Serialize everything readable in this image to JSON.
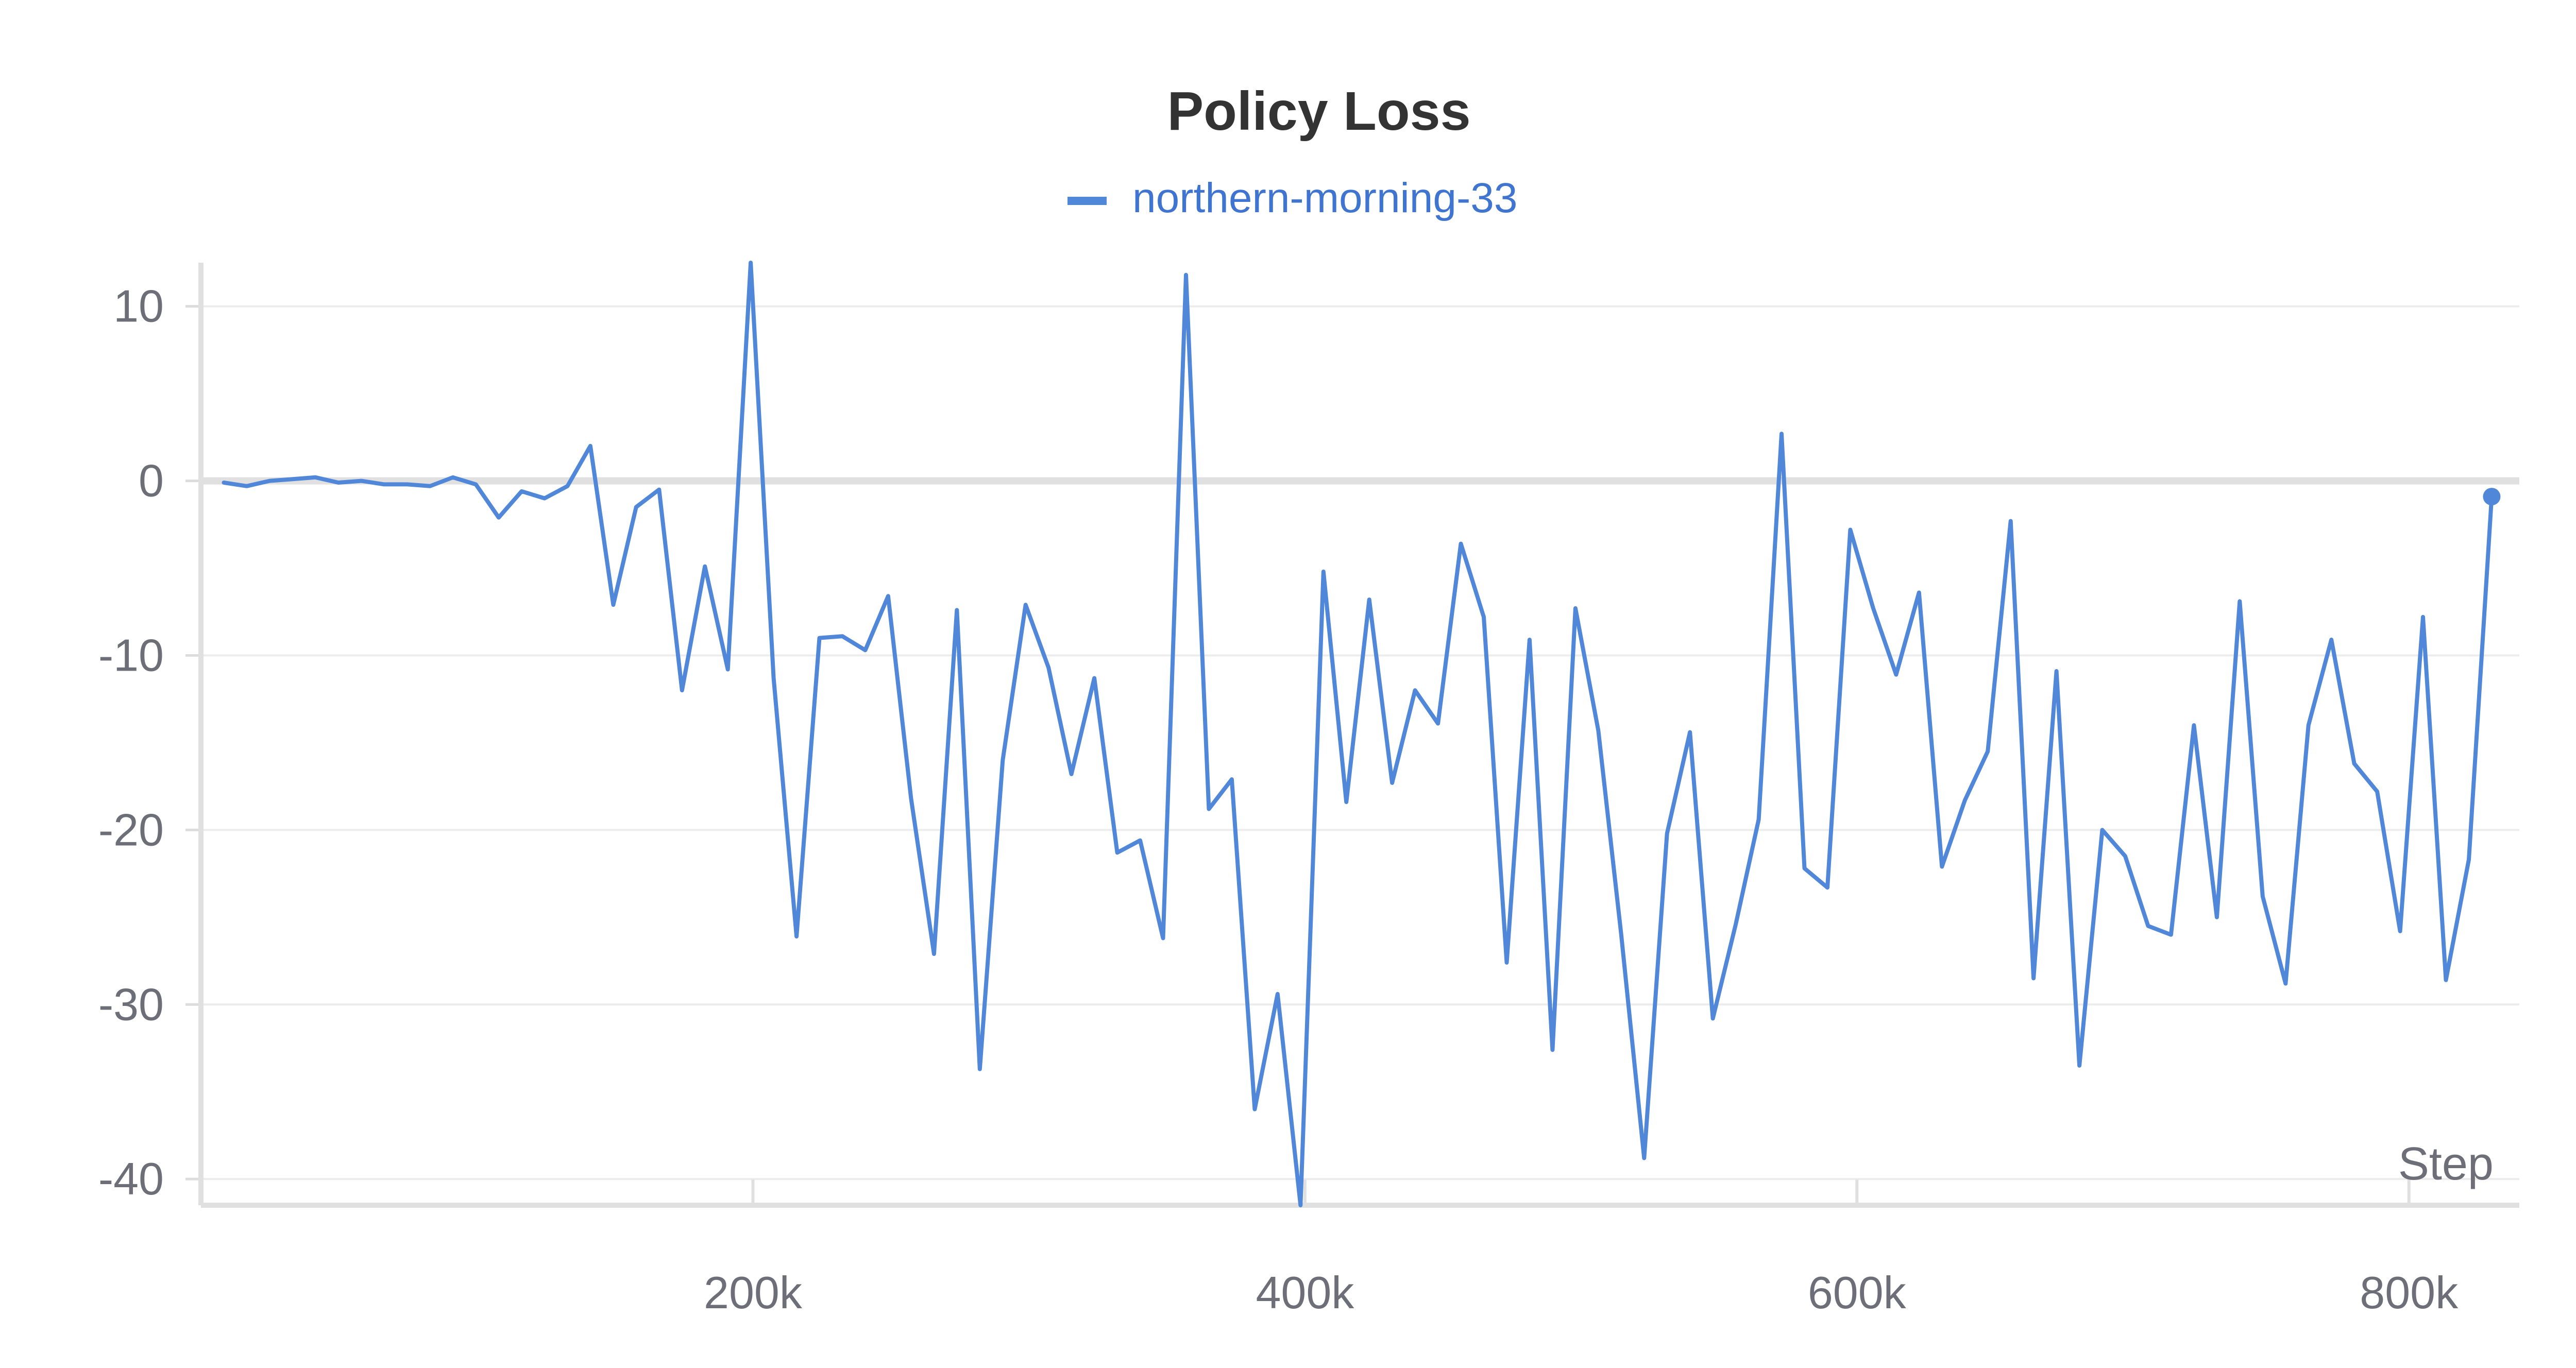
{
  "chart_data": {
    "type": "line",
    "title": "Policy Loss",
    "xlabel": "Step",
    "ylabel": "",
    "xlim": [
      0,
      840000
    ],
    "ylim": [
      -41.5,
      12.5
    ],
    "x_ticks": [
      {
        "value": 200000,
        "label": "200k"
      },
      {
        "value": 400000,
        "label": "400k"
      },
      {
        "value": 600000,
        "label": "600k"
      },
      {
        "value": 800000,
        "label": "800k"
      }
    ],
    "y_ticks": [
      {
        "value": 10,
        "label": "10"
      },
      {
        "value": 0,
        "label": "0"
      },
      {
        "value": -10,
        "label": "-10"
      },
      {
        "value": -20,
        "label": "-20"
      },
      {
        "value": -30,
        "label": "-30"
      },
      {
        "value": -40,
        "label": "-40"
      }
    ],
    "grid": true,
    "legend_position": "top-center",
    "series": [
      {
        "name": "northern-morning-33",
        "color": "#5087d8",
        "x": [
          8300,
          16600,
          24900,
          33200,
          41500,
          49800,
          58100,
          66400,
          74700,
          83000,
          91300,
          99600,
          107900,
          116200,
          124500,
          132800,
          141100,
          149400,
          157700,
          166000,
          174300,
          182600,
          190900,
          199200,
          207500,
          215800,
          224100,
          232400,
          240700,
          249000,
          257300,
          265600,
          273900,
          282200,
          290500,
          298800,
          307100,
          315400,
          323700,
          332000,
          340300,
          348600,
          356900,
          365200,
          373500,
          381800,
          390100,
          398400,
          406700,
          415000,
          423300,
          431600,
          439900,
          448200,
          456500,
          464800,
          473100,
          481400,
          489700,
          498000,
          506300,
          514600,
          522900,
          531200,
          539500,
          547800,
          556100,
          564400,
          572700,
          581000,
          589300,
          597600,
          605900,
          614200,
          622500,
          630800,
          639100,
          647400,
          655700,
          664000,
          672300,
          680600,
          688900,
          697200,
          705500,
          713800,
          722100,
          730400,
          738700,
          747000,
          755300,
          763600,
          771900,
          780200,
          788500,
          796800,
          805100,
          813400,
          821700,
          830000
        ],
        "y": [
          -0.1,
          -0.3,
          0.0,
          0.1,
          0.2,
          -0.1,
          0.0,
          -0.2,
          -0.2,
          -0.3,
          0.2,
          -0.2,
          -2.1,
          -0.6,
          -1.0,
          -0.3,
          2.0,
          -7.1,
          -1.5,
          -0.5,
          -12.0,
          -4.9,
          -10.8,
          12.5,
          -11.3,
          -26.1,
          -9.0,
          -8.9,
          -9.7,
          -6.6,
          -18.2,
          -27.1,
          -7.4,
          -33.7,
          -16.0,
          -7.1,
          -10.7,
          -16.8,
          -11.3,
          -21.3,
          -20.6,
          -26.2,
          11.8,
          -18.8,
          -17.1,
          -36.0,
          -29.4,
          -41.5,
          -5.2,
          -18.4,
          -6.8,
          -17.3,
          -12.0,
          -13.9,
          -3.6,
          -7.8,
          -27.6,
          -9.1,
          -32.6,
          -7.3,
          -14.3,
          -26.0,
          -38.8,
          -20.2,
          -14.4,
          -30.8,
          -25.4,
          -19.4,
          2.7,
          -22.2,
          -23.3,
          -2.8,
          -7.3,
          -11.1,
          -6.4,
          -22.1,
          -18.3,
          -15.5,
          -2.3,
          -28.5,
          -10.9,
          -33.5,
          -20.0,
          -21.5,
          -25.5,
          -26.0,
          -14.0,
          -25.0,
          -6.9,
          -23.8,
          -28.8,
          -14.0,
          -9.1,
          -16.2,
          -17.8,
          -25.8,
          -7.8,
          -28.6,
          -21.7,
          -0.9
        ]
      }
    ]
  }
}
